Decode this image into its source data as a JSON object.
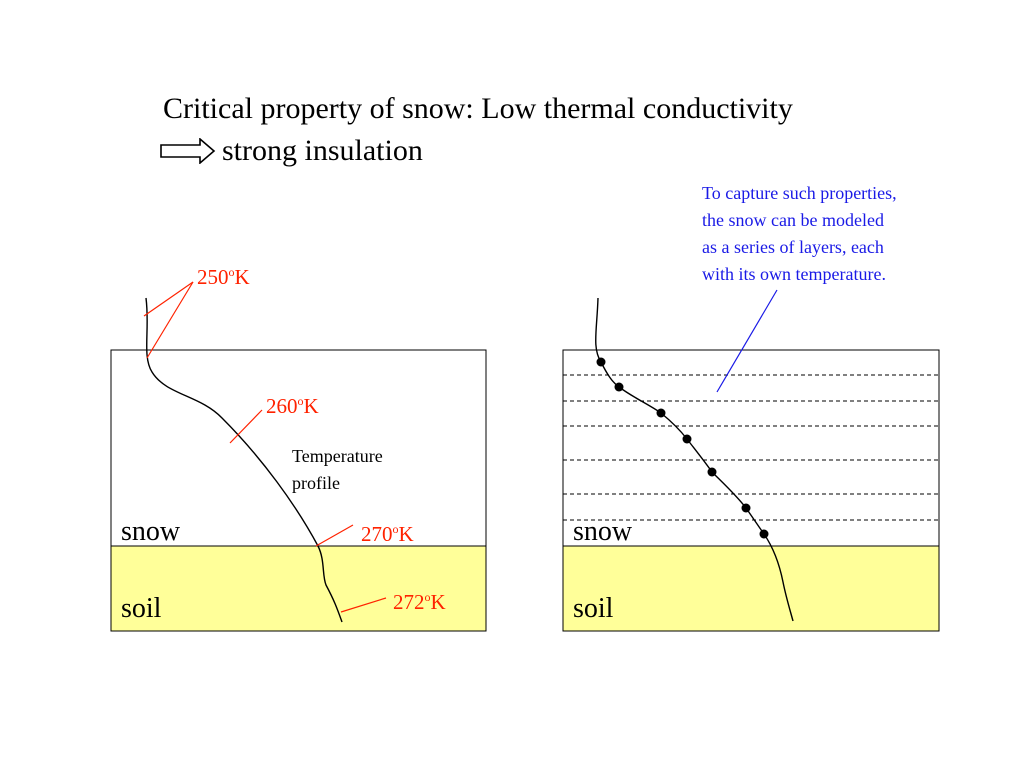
{
  "colors": {
    "soil": "#ffff99",
    "temperature_label": "#ff2200",
    "note": "#1a1ae6",
    "outline": "#000000"
  },
  "title": {
    "line1": "Critical property of snow: Low thermal conductivity",
    "line2": "strong insulation",
    "arrow_icon": "outline-right-arrow"
  },
  "left_panel": {
    "snow_label": "snow",
    "soil_label": "soil",
    "profile_label_1": "Temperature",
    "profile_label_2": "profile",
    "temps": [
      {
        "value": "250",
        "sup": "o",
        "unit": "K"
      },
      {
        "value": "260",
        "sup": "o",
        "unit": "K"
      },
      {
        "value": "270",
        "sup": "o",
        "unit": "K"
      },
      {
        "value": "272",
        "sup": "o",
        "unit": "K"
      }
    ]
  },
  "right_panel": {
    "snow_label": "snow",
    "soil_label": "soil",
    "note_lines": [
      "To capture such properties,",
      "the snow can be modeled",
      "as a series of layers, each",
      "with its own temperature."
    ],
    "layer_count": 7
  }
}
